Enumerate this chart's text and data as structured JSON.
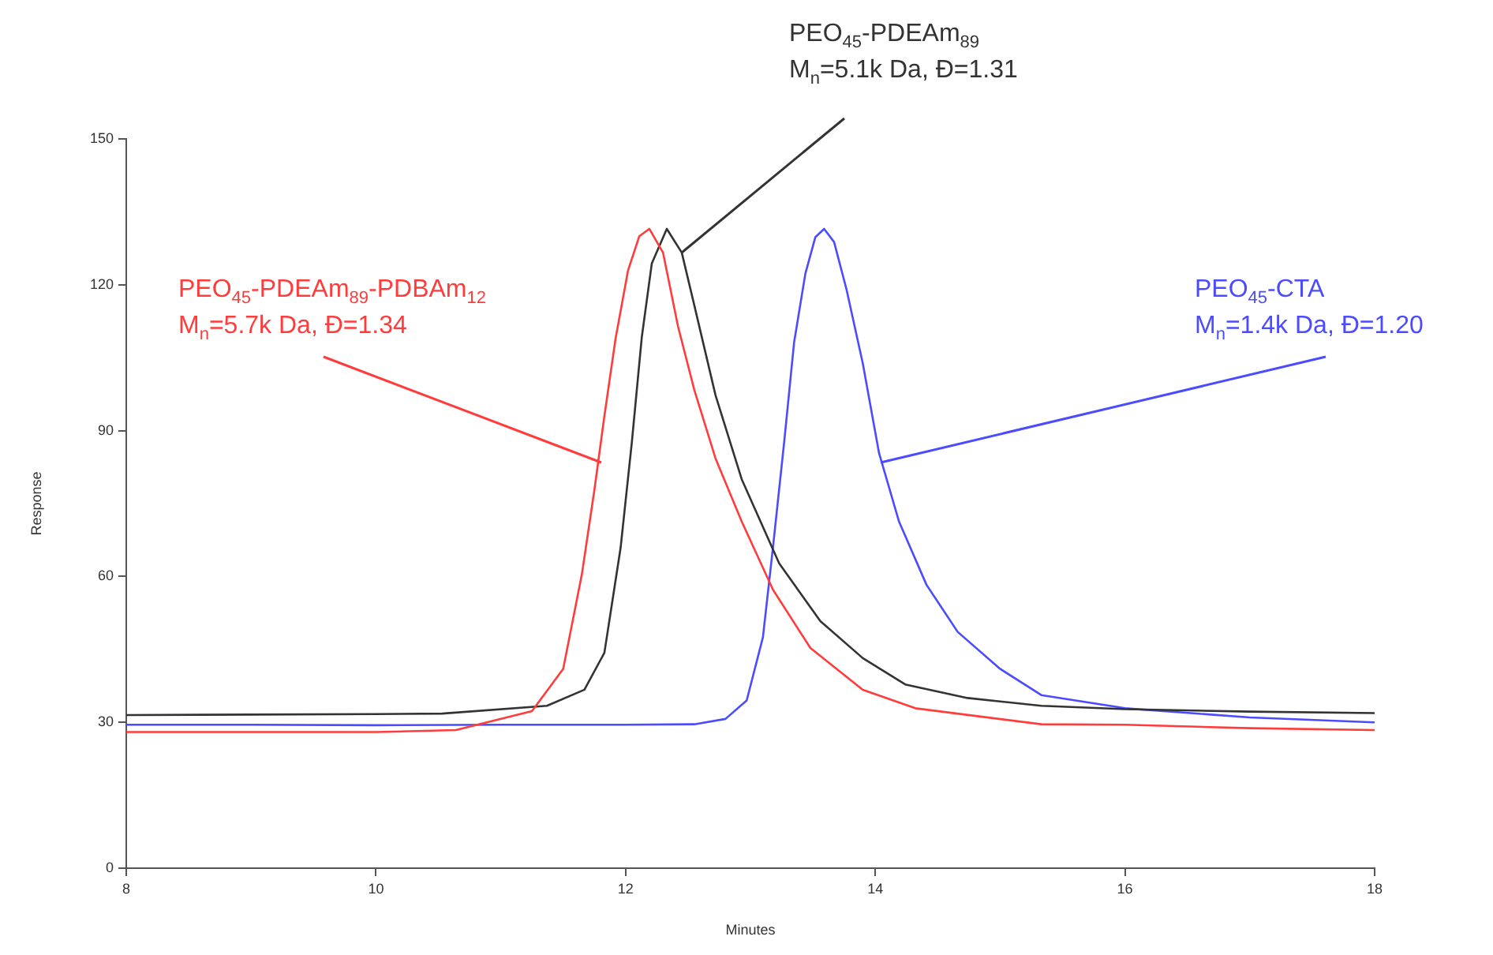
{
  "chart_data": {
    "type": "line",
    "xlabel": "Minutes",
    "ylabel": "Response",
    "xlim": [
      8,
      18
    ],
    "xticks": [
      8,
      10,
      12,
      14,
      16,
      18
    ],
    "ylim": [
      0,
      150
    ],
    "yticks": [
      0,
      30,
      60,
      90,
      120,
      150
    ],
    "grid": false,
    "legend": false,
    "marker": "none",
    "line_style": "solid",
    "series": [
      {
        "name": "PEO$_{45}$-PDEAm$_{89}$-PDBAm$_{12}$\nM$_{n}$=5.7k Da, Đ=1.34",
        "color": "#ff3c3c",
        "x": [
          8,
          9,
          10,
          10.64,
          11.25,
          11.5,
          11.65,
          11.75,
          11.83,
          11.92,
          12.02,
          12.11,
          12.19,
          12.3,
          12.42,
          12.55,
          12.72,
          12.93,
          13.18,
          13.48,
          13.9,
          14.32,
          15.33,
          16,
          17,
          18
        ],
        "values": [
          28,
          28,
          28,
          28.4,
          32.3,
          41,
          60.5,
          77.8,
          93,
          109,
          123,
          130,
          131.5,
          126.6,
          111.4,
          98.4,
          84.3,
          71.3,
          57.3,
          45.3,
          36.7,
          32.9,
          29.6,
          29.5,
          28.8,
          28.4
        ]
      },
      {
        "name": "PEO$_{45}$-PDEAm$_{89}$\nM$_{n}$=5.1k Da, Đ=1.31",
        "color": "#333333",
        "x": [
          8,
          9,
          10,
          10.53,
          11.37,
          11.67,
          11.83,
          11.96,
          12.05,
          12.13,
          12.21,
          12.33,
          12.45,
          12.55,
          12.72,
          12.93,
          13.23,
          13.56,
          13.9,
          14.24,
          14.74,
          15.33,
          16,
          17,
          18
        ],
        "values": [
          31.5,
          31.6,
          31.7,
          31.8,
          33.4,
          36.7,
          44.3,
          65.9,
          87.6,
          109.3,
          124.4,
          131.5,
          126.6,
          115.8,
          97.3,
          80,
          62.7,
          50.8,
          43.2,
          37.8,
          35,
          33.4,
          32.7,
          32.2,
          31.9
        ]
      },
      {
        "name": "PEO$_{45}$-CTA\nM$_{n}$=1.4k Da, Đ=1.20",
        "color": "#4b4bff",
        "x": [
          8,
          9,
          10,
          11,
          12,
          12.55,
          12.8,
          12.97,
          13.1,
          13.18,
          13.27,
          13.35,
          13.44,
          13.52,
          13.59,
          13.67,
          13.77,
          13.9,
          14.03,
          14.19,
          14.41,
          14.66,
          15,
          15.33,
          16,
          17,
          18
        ],
        "values": [
          29.5,
          29.5,
          29.4,
          29.5,
          29.5,
          29.6,
          30.7,
          34.5,
          47.5,
          65.9,
          87.6,
          108.2,
          122.3,
          129.8,
          131.5,
          128.8,
          119,
          103.8,
          85.4,
          71.3,
          58.3,
          48.6,
          41,
          35.6,
          32.9,
          31,
          30
        ]
      }
    ]
  }
}
